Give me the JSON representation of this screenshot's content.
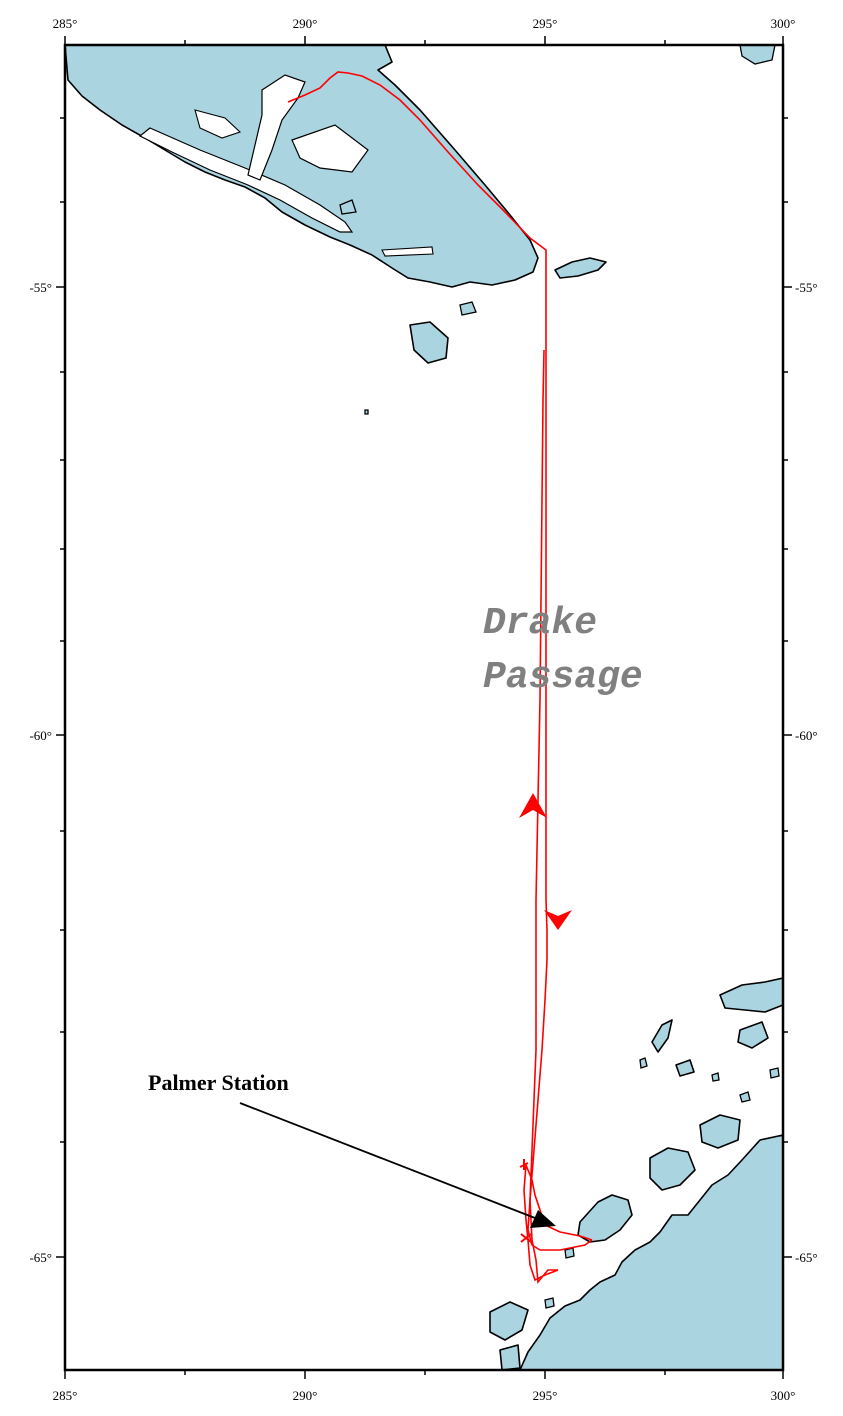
{
  "map": {
    "x_ticks": [
      "285°",
      "290°",
      "295°",
      "300°"
    ],
    "y_ticks": [
      "-55°",
      "-60°",
      "-65°"
    ],
    "region_label": [
      "Drake",
      "Passage"
    ],
    "station_label": "Palmer Station",
    "colors": {
      "land": "#a9d4e0",
      "ocean": "#ffffff",
      "coastline": "#000000",
      "track": "#ff0000",
      "region_label": "#808080"
    }
  }
}
